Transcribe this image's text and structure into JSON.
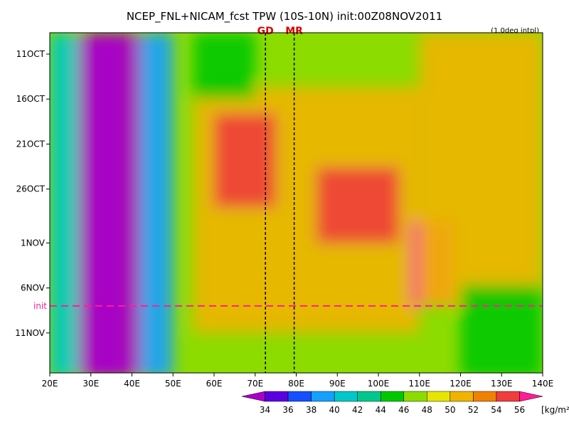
{
  "chart_data": {
    "type": "heatmap",
    "title": "NCEP_FNL+NICAM_fcst TPW (10S-10N) init:00Z08NOV2011",
    "subtitle": "(1.0deg intpl)",
    "x_ticks": [
      "20E",
      "30E",
      "40E",
      "50E",
      "60E",
      "70E",
      "80E",
      "90E",
      "100E",
      "110E",
      "120E",
      "130E",
      "140E"
    ],
    "x_range": [
      20,
      140
    ],
    "y_ticks": [
      "11OCT",
      "16OCT",
      "21OCT",
      "26OCT",
      "1NOV",
      "6NOV",
      "11NOV"
    ],
    "init_label": "init",
    "markers": [
      {
        "label": "GD",
        "lon": 72.5
      },
      {
        "label": "MR",
        "lon": 79.5
      }
    ],
    "colorbar": {
      "levels": [
        34,
        36,
        38,
        40,
        42,
        44,
        46,
        48,
        50,
        52,
        54,
        56
      ],
      "unit": "[kg/m²]",
      "colors": [
        "#a800c8",
        "#5a00e0",
        "#1450ff",
        "#14a0ff",
        "#00c8c8",
        "#00c88c",
        "#00c800",
        "#8cdc00",
        "#e6e600",
        "#f0b400",
        "#f08200",
        "#f03c3c",
        "#ff1e96"
      ]
    },
    "regions": [
      {
        "lon": [
          27,
          42
        ],
        "dates": [
          "11OCT",
          "16NOV"
        ],
        "value": 33
      },
      {
        "lon": [
          30,
          38
        ],
        "dates": [
          "11OCT",
          "16NOV"
        ],
        "value": 32
      },
      {
        "lon": [
          20,
          27
        ],
        "dates": [
          "11OCT",
          "16NOV"
        ],
        "value": 40
      },
      {
        "lon": [
          42,
          50
        ],
        "dates": [
          "11OCT",
          "16NOV"
        ],
        "value": 38
      },
      {
        "lon": [
          55,
          110
        ],
        "dates": [
          "17OCT",
          "11NOV"
        ],
        "value": 51
      },
      {
        "lon": [
          60,
          75
        ],
        "dates": [
          "20OCT",
          "28OCT"
        ],
        "value": 55
      },
      {
        "lon": [
          85,
          105
        ],
        "dates": [
          "26OCT",
          "1NOV"
        ],
        "value": 55
      },
      {
        "lon": [
          108,
          118
        ],
        "dates": [
          "1NOV",
          "8NOV"
        ],
        "value": 57
      },
      {
        "lon": [
          110,
          140
        ],
        "dates": [
          "11OCT",
          "8NOV"
        ],
        "value": 50
      },
      {
        "lon": [
          55,
          70
        ],
        "dates": [
          "11OCT",
          "16OCT"
        ],
        "value": 44
      },
      {
        "lon": [
          120,
          140
        ],
        "dates": [
          "8NOV",
          "16NOV"
        ],
        "value": 44
      }
    ]
  }
}
